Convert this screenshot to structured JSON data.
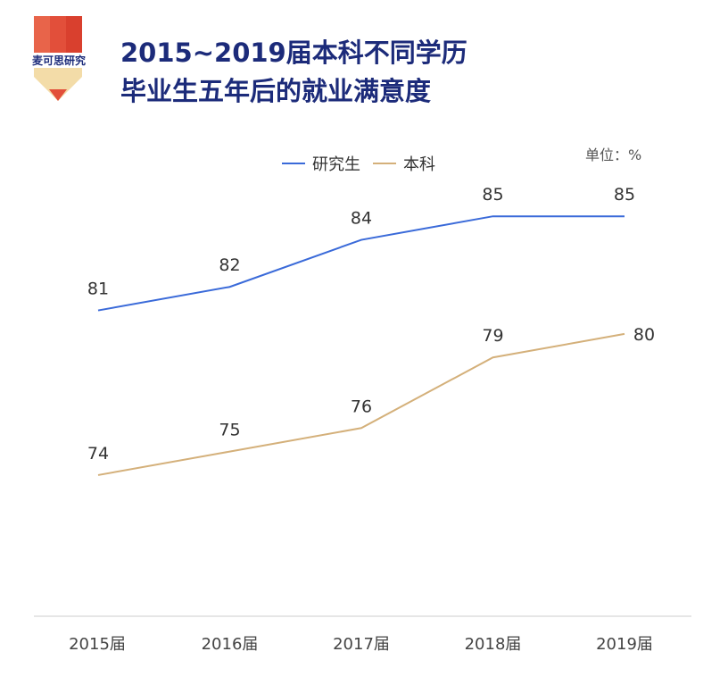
{
  "logo_text": "麦可思研究",
  "title_lines": [
    "2015~2019届本科不同学历",
    "毕业生五年后的就业满意度"
  ],
  "unit": "单位：%",
  "chart_data": {
    "type": "line",
    "categories": [
      "2015届",
      "2016届",
      "2017届",
      "2018届",
      "2019届"
    ],
    "series": [
      {
        "name": "研究生",
        "values": [
          81,
          82,
          84,
          85,
          85
        ],
        "color": "#3a6ad9"
      },
      {
        "name": "本科",
        "values": [
          74,
          75,
          76,
          79,
          80
        ],
        "color": "#d4b07a"
      }
    ],
    "ylim": [
      68,
      88.5
    ],
    "grid": false,
    "legend": "top"
  }
}
